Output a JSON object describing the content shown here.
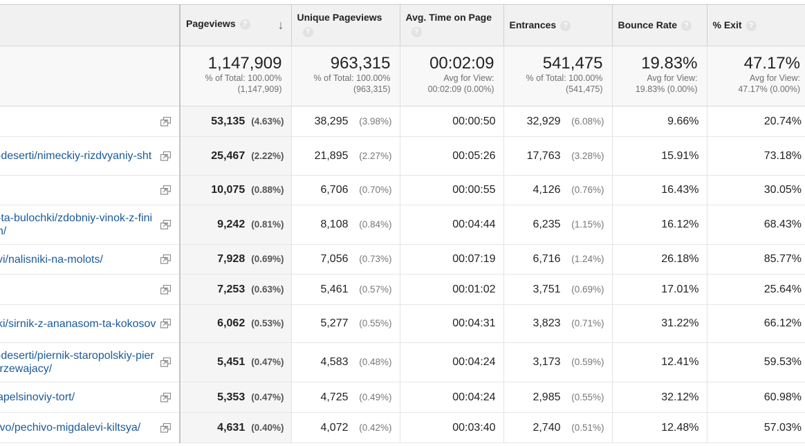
{
  "columns": {
    "pageviews": "Pageviews",
    "unique_pageviews": "Unique Pageviews",
    "avg_time": "Avg. Time on Page",
    "entrances": "Entrances",
    "bounce_rate": "Bounce Rate",
    "exit": "% Exit",
    "help_glyph": "?",
    "sort_glyph": "↓"
  },
  "totals": {
    "pageviews": {
      "value": "1,147,909",
      "sub1": "% of Total: 100.00%",
      "sub2": "(1,147,909)"
    },
    "unique_pageviews": {
      "value": "963,315",
      "sub1": "% of Total: 100.00%",
      "sub2": "(963,315)"
    },
    "avg_time": {
      "value": "00:02:09",
      "sub1": "Avg for View:",
      "sub2": "00:02:09 (0.00%)"
    },
    "entrances": {
      "value": "541,475",
      "sub1": "% of Total: 100.00%",
      "sub2": "(541,475)"
    },
    "bounce_rate": {
      "value": "19.83%",
      "sub1": "Avg for View:",
      "sub2": "19.83% (0.00%)"
    },
    "exit": {
      "value": "47.17%",
      "sub1": "Avg for View:",
      "sub2": "47.17% (0.00%)"
    }
  },
  "rows": [
    {
      "page": "",
      "pageviews": "53,135",
      "pageviews_pct": "(4.63%)",
      "unique": "38,295",
      "unique_pct": "(3.98%)",
      "avg_time": "00:00:50",
      "entrances": "32,929",
      "entrances_pct": "(6.08%)",
      "bounce": "9.66%",
      "exit": "20.74%"
    },
    {
      "page": "-deserti/nimeckiy-rizdvyaniy-sht",
      "pageviews": "25,467",
      "pageviews_pct": "(2.22%)",
      "unique": "21,895",
      "unique_pct": "(2.27%)",
      "avg_time": "00:05:26",
      "entrances": "17,763",
      "entrances_pct": "(3.28%)",
      "bounce": "15.91%",
      "exit": "73.18%"
    },
    {
      "page": "",
      "pageviews": "10,075",
      "pageviews_pct": "(0.88%)",
      "unique": "6,706",
      "unique_pct": "(0.70%)",
      "avg_time": "00:00:55",
      "entrances": "4,126",
      "entrances_pct": "(0.76%)",
      "bounce": "16.43%",
      "exit": "30.05%"
    },
    {
      "page": "-ta-bulochki/zdobniy-vinok-z-fini\nn/",
      "pageviews": "9,242",
      "pageviews_pct": "(0.81%)",
      "unique": "8,108",
      "unique_pct": "(0.84%)",
      "avg_time": "00:04:44",
      "entrances": "6,235",
      "entrances_pct": "(1.15%)",
      "bounce": "16.12%",
      "exit": "68.43%"
    },
    {
      "page": "vi/nalisniki-na-molots/",
      "pageviews": "7,928",
      "pageviews_pct": "(0.69%)",
      "unique": "7,056",
      "unique_pct": "(0.73%)",
      "avg_time": "00:07:19",
      "entrances": "6,716",
      "entrances_pct": "(1.24%)",
      "bounce": "26.18%",
      "exit": "85.77%"
    },
    {
      "page": "",
      "pageviews": "7,253",
      "pageviews_pct": "(0.63%)",
      "unique": "5,461",
      "unique_pct": "(0.57%)",
      "avg_time": "00:01:02",
      "entrances": "3,751",
      "entrances_pct": "(0.69%)",
      "bounce": "17.01%",
      "exit": "25.64%"
    },
    {
      "page": "ki/sirnik-z-ananasom-ta-kokosov",
      "pageviews": "6,062",
      "pageviews_pct": "(0.53%)",
      "unique": "5,277",
      "unique_pct": "(0.55%)",
      "avg_time": "00:04:31",
      "entrances": "3,823",
      "entrances_pct": "(0.71%)",
      "bounce": "31.22%",
      "exit": "66.12%"
    },
    {
      "page": "-deserti/piernik-staropolskiy-pier\njrzewajacy/",
      "pageviews": "5,451",
      "pageviews_pct": "(0.47%)",
      "unique": "4,583",
      "unique_pct": "(0.48%)",
      "avg_time": "00:04:24",
      "entrances": "3,173",
      "entrances_pct": "(0.59%)",
      "bounce": "12.41%",
      "exit": "59.53%"
    },
    {
      "page": "apelsinoviy-tort/",
      "pageviews": "5,353",
      "pageviews_pct": "(0.47%)",
      "unique": "4,725",
      "unique_pct": "(0.49%)",
      "avg_time": "00:04:24",
      "entrances": "2,985",
      "entrances_pct": "(0.55%)",
      "bounce": "32.12%",
      "exit": "60.98%"
    },
    {
      "page": "ivo/pechivo-migdalevi-kiltsya/",
      "pageviews": "4,631",
      "pageviews_pct": "(0.40%)",
      "unique": "4,072",
      "unique_pct": "(0.42%)",
      "avg_time": "00:03:40",
      "entrances": "2,740",
      "entrances_pct": "(0.51%)",
      "bounce": "12.48%",
      "exit": "57.03%"
    }
  ],
  "icons": {
    "row_action": "open-in-new-window-icon",
    "sort": "sort-descending-arrow-icon",
    "help": "help-question-icon"
  },
  "colors": {
    "link": "#1a5a9a",
    "header_bg": "#f1f1f1",
    "totals_bg": "#f8f8f8",
    "sorted_col_bg": "#f5f5f5"
  }
}
